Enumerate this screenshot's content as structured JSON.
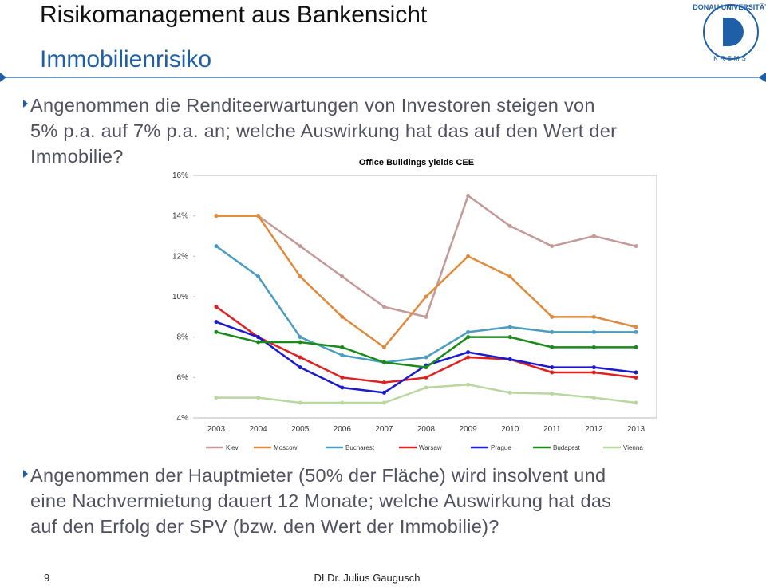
{
  "header": {
    "title": "Risikomanagement aus Bankensicht",
    "subtitle": "Immobilienrisiko",
    "logo": {
      "top": "DONAU UNIVERSITÄT",
      "bottom": "KREMS"
    }
  },
  "bullets": [
    {
      "lines": [
        "Angenommen die Renditeerwartungen von Investoren steigen von",
        "5% p.a. auf 7% p.a. an; welche Auswirkung hat das auf den Wert der",
        "Immobilie?"
      ]
    },
    {
      "lines": [
        "Angenommen der Hauptmieter (50% der Fläche) wird insolvent und",
        "eine Nachvermietung dauert 12 Monate; welche Auswirkung hat das",
        "auf den Erfolg der SPV (bzw. den Wert der Immobilie)?"
      ]
    }
  ],
  "footer": {
    "page": "9",
    "author": "DI Dr. Julius Gaugusch"
  },
  "chart_data": {
    "type": "line",
    "title": "Office Buildings yields CEE",
    "categories": [
      "2003",
      "2004",
      "2005",
      "2006",
      "2007",
      "2008",
      "2009",
      "2010",
      "2011",
      "2012",
      "2013"
    ],
    "ylim": [
      4,
      16
    ],
    "yticks": [
      {
        "value": 4,
        "label": "4%"
      },
      {
        "value": 6,
        "label": "6%"
      },
      {
        "value": 8,
        "label": "8%"
      },
      {
        "value": 10,
        "label": "10%"
      },
      {
        "value": 12,
        "label": "12%"
      },
      {
        "value": 14,
        "label": "14%"
      },
      {
        "value": 16,
        "label": "16%"
      }
    ],
    "grid": false,
    "legend": "bottom",
    "series": [
      {
        "name": "Kiev",
        "color": "#c49a98",
        "values": [
          14,
          14,
          12.5,
          11,
          9.5,
          9,
          15,
          13.5,
          12.5,
          13,
          12.5
        ]
      },
      {
        "name": "Moscow",
        "color": "#e08a3c",
        "values": [
          14,
          14,
          11,
          9,
          7.5,
          10,
          12,
          11,
          9,
          9,
          8.5
        ]
      },
      {
        "name": "Bucharest",
        "color": "#4a9cc0",
        "values": [
          12.5,
          11,
          8,
          7.1,
          6.75,
          7,
          8.25,
          8.5,
          8.25,
          8.25,
          8.25
        ]
      },
      {
        "name": "Warsaw",
        "color": "#e02020",
        "values": [
          9.5,
          8,
          7,
          6,
          5.75,
          6,
          7,
          6.9,
          6.25,
          6.25,
          6
        ]
      },
      {
        "name": "Prague",
        "color": "#1a1ad0",
        "values": [
          8.75,
          8,
          6.5,
          5.5,
          5.25,
          6.6,
          7.25,
          6.9,
          6.5,
          6.5,
          6.25
        ]
      },
      {
        "name": "Budapest",
        "color": "#1a8a1a",
        "values": [
          8.25,
          7.75,
          7.75,
          7.5,
          6.75,
          6.5,
          8,
          8,
          7.5,
          7.5,
          7.5
        ]
      },
      {
        "name": "Vienna",
        "color": "#b8d8a0",
        "values": [
          5,
          5,
          4.75,
          4.75,
          4.75,
          5.5,
          5.65,
          5.25,
          5.2,
          5,
          4.75
        ]
      }
    ]
  }
}
